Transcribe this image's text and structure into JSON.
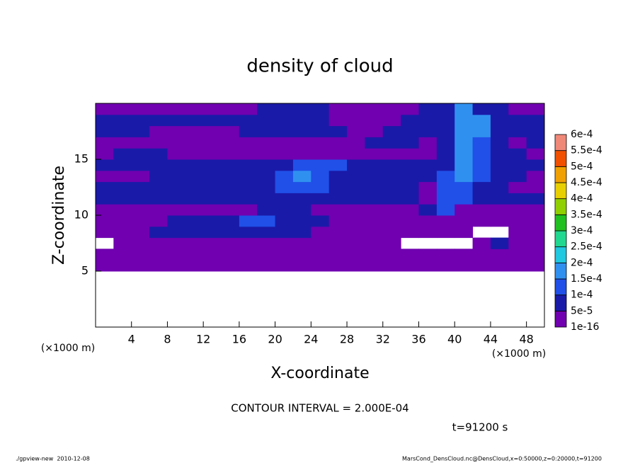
{
  "chart_data": {
    "type": "heatmap",
    "title": "density of cloud",
    "x_label": "X-coordinate",
    "y_label": "Z-coordinate",
    "x_unit_label": "(×1000 m)",
    "y_unit_label": "(×1000 m)",
    "contour_note": "CONTOUR INTERVAL = 2.000E-04",
    "time_label": "t=91200 s",
    "footer_left": "./gpview-new  2010-12-08",
    "footer_right": "MarsCond_DensCloud.nc@DensCloud,x=0:50000,z=0:20000,t=91200",
    "xlim": [
      0,
      50
    ],
    "ylim": [
      0,
      20
    ],
    "xticks": [
      4,
      8,
      12,
      16,
      20,
      24,
      28,
      32,
      36,
      40,
      44,
      48
    ],
    "yticks": [
      5,
      10,
      15
    ],
    "xbins": [
      0,
      2,
      4,
      6,
      8,
      10,
      12,
      14,
      16,
      18,
      20,
      22,
      24,
      26,
      28,
      30,
      32,
      34,
      36,
      38,
      40,
      42,
      44,
      46,
      48,
      50
    ],
    "ybins": [
      5,
      6,
      7,
      8,
      9,
      10,
      11,
      12,
      13,
      14,
      15,
      16,
      17,
      18,
      19,
      20
    ],
    "values": [
      [
        1e-16,
        1e-16,
        1e-16,
        1e-16,
        1e-16,
        1e-16,
        1e-16,
        1e-16,
        1e-16,
        1e-16,
        1e-16,
        1e-16,
        1e-16,
        1e-16,
        1e-16,
        1e-16,
        1e-16,
        1e-16,
        1e-16,
        1e-16,
        1e-16,
        1e-16,
        1e-16,
        1e-16,
        1e-16
      ],
      [
        1e-16,
        1e-16,
        1e-16,
        1e-16,
        1e-16,
        1e-16,
        1e-16,
        1e-16,
        1e-16,
        1e-16,
        1e-16,
        1e-16,
        1e-16,
        1e-16,
        1e-16,
        1e-16,
        1e-16,
        1e-16,
        1e-16,
        1e-16,
        1e-16,
        1e-16,
        1e-16,
        1e-16,
        1e-16
      ],
      [
        null,
        1e-16,
        1e-16,
        1e-16,
        1e-16,
        1e-16,
        1e-16,
        1e-16,
        1e-16,
        1e-16,
        1e-16,
        1e-16,
        1e-16,
        1e-16,
        1e-16,
        1e-16,
        1e-16,
        null,
        null,
        null,
        null,
        1e-16,
        5e-05,
        1e-16,
        1e-16
      ],
      [
        1e-16,
        1e-16,
        1e-16,
        5e-05,
        5e-05,
        5e-05,
        5e-05,
        5e-05,
        5e-05,
        5e-05,
        5e-05,
        5e-05,
        1e-16,
        1e-16,
        1e-16,
        1e-16,
        1e-16,
        1e-16,
        1e-16,
        1e-16,
        1e-16,
        null,
        null,
        1e-16,
        1e-16
      ],
      [
        1e-16,
        1e-16,
        1e-16,
        1e-16,
        5e-05,
        5e-05,
        5e-05,
        5e-05,
        0.0001,
        0.0001,
        5e-05,
        5e-05,
        5e-05,
        1e-16,
        1e-16,
        1e-16,
        1e-16,
        1e-16,
        1e-16,
        1e-16,
        1e-16,
        1e-16,
        1e-16,
        1e-16,
        1e-16
      ],
      [
        1e-16,
        1e-16,
        1e-16,
        1e-16,
        1e-16,
        1e-16,
        1e-16,
        1e-16,
        1e-16,
        5e-05,
        5e-05,
        5e-05,
        1e-16,
        1e-16,
        1e-16,
        1e-16,
        1e-16,
        1e-16,
        5e-05,
        0.0001,
        1e-16,
        1e-16,
        1e-16,
        1e-16,
        1e-16
      ],
      [
        5e-05,
        5e-05,
        5e-05,
        5e-05,
        5e-05,
        5e-05,
        5e-05,
        5e-05,
        5e-05,
        5e-05,
        5e-05,
        5e-05,
        5e-05,
        5e-05,
        5e-05,
        5e-05,
        5e-05,
        5e-05,
        1e-16,
        0.0001,
        0.0001,
        5e-05,
        5e-05,
        5e-05,
        5e-05
      ],
      [
        5e-05,
        5e-05,
        5e-05,
        5e-05,
        5e-05,
        5e-05,
        5e-05,
        5e-05,
        5e-05,
        5e-05,
        0.0001,
        0.0001,
        0.0001,
        5e-05,
        5e-05,
        5e-05,
        5e-05,
        5e-05,
        1e-16,
        0.0001,
        0.0001,
        5e-05,
        5e-05,
        1e-16,
        1e-16
      ],
      [
        1e-16,
        1e-16,
        1e-16,
        5e-05,
        5e-05,
        5e-05,
        5e-05,
        5e-05,
        5e-05,
        5e-05,
        0.0001,
        0.00015,
        0.0001,
        5e-05,
        5e-05,
        5e-05,
        5e-05,
        5e-05,
        5e-05,
        0.0001,
        0.00015,
        0.0001,
        5e-05,
        5e-05,
        1e-16
      ],
      [
        5e-05,
        5e-05,
        5e-05,
        5e-05,
        5e-05,
        5e-05,
        5e-05,
        5e-05,
        5e-05,
        5e-05,
        5e-05,
        0.0001,
        0.0001,
        0.0001,
        5e-05,
        5e-05,
        5e-05,
        5e-05,
        5e-05,
        5e-05,
        0.00015,
        0.0001,
        5e-05,
        5e-05,
        5e-05
      ],
      [
        1e-16,
        5e-05,
        5e-05,
        5e-05,
        1e-16,
        1e-16,
        1e-16,
        1e-16,
        1e-16,
        1e-16,
        1e-16,
        1e-16,
        1e-16,
        1e-16,
        1e-16,
        1e-16,
        1e-16,
        1e-16,
        1e-16,
        5e-05,
        0.00015,
        0.0001,
        5e-05,
        5e-05,
        1e-16
      ],
      [
        1e-16,
        1e-16,
        1e-16,
        1e-16,
        1e-16,
        1e-16,
        1e-16,
        1e-16,
        1e-16,
        1e-16,
        1e-16,
        1e-16,
        1e-16,
        1e-16,
        1e-16,
        5e-05,
        5e-05,
        5e-05,
        1e-16,
        5e-05,
        0.00015,
        0.0001,
        5e-05,
        1e-16,
        5e-05
      ],
      [
        5e-05,
        5e-05,
        5e-05,
        1e-16,
        1e-16,
        1e-16,
        1e-16,
        1e-16,
        5e-05,
        5e-05,
        5e-05,
        5e-05,
        5e-05,
        5e-05,
        1e-16,
        1e-16,
        5e-05,
        5e-05,
        5e-05,
        5e-05,
        0.00015,
        0.00015,
        5e-05,
        5e-05,
        5e-05
      ],
      [
        5e-05,
        5e-05,
        5e-05,
        5e-05,
        5e-05,
        5e-05,
        5e-05,
        5e-05,
        5e-05,
        5e-05,
        5e-05,
        5e-05,
        5e-05,
        1e-16,
        1e-16,
        1e-16,
        1e-16,
        5e-05,
        5e-05,
        5e-05,
        0.00015,
        0.00015,
        5e-05,
        5e-05,
        5e-05
      ],
      [
        1e-16,
        1e-16,
        1e-16,
        1e-16,
        1e-16,
        1e-16,
        1e-16,
        1e-16,
        1e-16,
        5e-05,
        5e-05,
        5e-05,
        5e-05,
        1e-16,
        1e-16,
        1e-16,
        1e-16,
        1e-16,
        5e-05,
        5e-05,
        0.00015,
        5e-05,
        5e-05,
        1e-16,
        1e-16
      ]
    ],
    "levels": [
      {
        "value": 1e-16,
        "label": "1e-16"
      },
      {
        "value": 5e-05,
        "label": "5e-5"
      },
      {
        "value": 0.0001,
        "label": "1e-4"
      },
      {
        "value": 0.00015,
        "label": "1.5e-4"
      },
      {
        "value": 0.0002,
        "label": "2e-4"
      },
      {
        "value": 0.00025,
        "label": "2.5e-4"
      },
      {
        "value": 0.0003,
        "label": "3e-4"
      },
      {
        "value": 0.00035,
        "label": "3.5e-4"
      },
      {
        "value": 0.0004,
        "label": "4e-4"
      },
      {
        "value": 0.00045,
        "label": "4.5e-4"
      },
      {
        "value": 0.0005,
        "label": "5e-4"
      },
      {
        "value": 0.00055,
        "label": "5.5e-4"
      },
      {
        "value": 0.0006,
        "label": "6e-4"
      }
    ],
    "colors": [
      "#7000b0",
      "#1a1aa8",
      "#2050e8",
      "#3090f0",
      "#20c8e0",
      "#20d890",
      "#20c020",
      "#90d000",
      "#e8d000",
      "#f0a000",
      "#f05000",
      "#f08878"
    ]
  }
}
